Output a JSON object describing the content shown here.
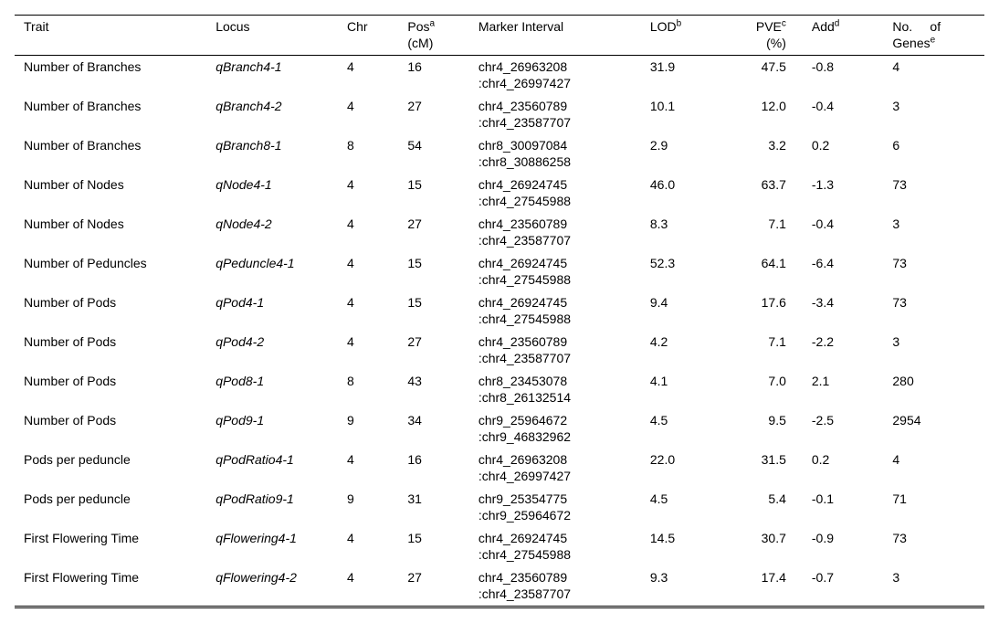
{
  "table": {
    "headers": {
      "trait": "Trait",
      "locus": "Locus",
      "chr": "Chr",
      "pos_label": "Pos",
      "pos_sup": "a",
      "pos_unit": "(cM)",
      "marker_interval": "Marker Interval",
      "lod_label": "LOD",
      "lod_sup": "b",
      "pve_label": "PVE",
      "pve_sup": "c",
      "pve_unit": "(%)",
      "add_label": "Add",
      "add_sup": "d",
      "genes_label_1": "No.",
      "genes_label_2": "of",
      "genes_label_3": "Genes",
      "genes_sup": "e"
    },
    "rows": [
      {
        "trait": "Number of Branches",
        "locus": "qBranch4-1",
        "chr": "4",
        "pos": "16",
        "marker1": "chr4_26963208",
        "marker2": ":chr4_26997427",
        "lod": "31.9",
        "pve": "47.5",
        "add": "-0.8",
        "genes": "4"
      },
      {
        "trait": "Number of Branches",
        "locus": "qBranch4-2",
        "chr": "4",
        "pos": "27",
        "marker1": "chr4_23560789",
        "marker2": ":chr4_23587707",
        "lod": "10.1",
        "pve": "12.0",
        "add": "-0.4",
        "genes": "3"
      },
      {
        "trait": "Number of Branches",
        "locus": "qBranch8-1",
        "chr": "8",
        "pos": "54",
        "marker1": "chr8_30097084",
        "marker2": ":chr8_30886258",
        "lod": "2.9",
        "pve": "3.2",
        "add": "0.2",
        "genes": "6"
      },
      {
        "trait": "Number of Nodes",
        "locus": "qNode4-1",
        "chr": "4",
        "pos": "15",
        "marker1": "chr4_26924745",
        "marker2": ":chr4_27545988",
        "lod": "46.0",
        "pve": "63.7",
        "add": "-1.3",
        "genes": "73"
      },
      {
        "trait": "Number of Nodes",
        "locus": "qNode4-2",
        "chr": "4",
        "pos": "27",
        "marker1": "chr4_23560789",
        "marker2": ":chr4_23587707",
        "lod": "8.3",
        "pve": "7.1",
        "add": "-0.4",
        "genes": "3"
      },
      {
        "trait": "Number of Peduncles",
        "locus": "qPeduncle4-1",
        "chr": "4",
        "pos": "15",
        "marker1": "chr4_26924745",
        "marker2": ":chr4_27545988",
        "lod": "52.3",
        "pve": "64.1",
        "add": "-6.4",
        "genes": "73"
      },
      {
        "trait": "Number of Pods",
        "locus": "qPod4-1",
        "chr": "4",
        "pos": "15",
        "marker1": "chr4_26924745",
        "marker2": ":chr4_27545988",
        "lod": "9.4",
        "pve": "17.6",
        "add": "-3.4",
        "genes": "73"
      },
      {
        "trait": "Number of Pods",
        "locus": "qPod4-2",
        "chr": "4",
        "pos": "27",
        "marker1": "chr4_23560789",
        "marker2": ":chr4_23587707",
        "lod": "4.2",
        "pve": "7.1",
        "add": "-2.2",
        "genes": "3"
      },
      {
        "trait": "Number of Pods",
        "locus": "qPod8-1",
        "chr": "8",
        "pos": "43",
        "marker1": "chr8_23453078",
        "marker2": ":chr8_26132514",
        "lod": "4.1",
        "pve": "7.0",
        "add": "2.1",
        "genes": "280"
      },
      {
        "trait": "Number of Pods",
        "locus": "qPod9-1",
        "chr": "9",
        "pos": "34",
        "marker1": "chr9_25964672",
        "marker2": ":chr9_46832962",
        "lod": "4.5",
        "pve": "9.5",
        "add": "-2.5",
        "genes": "2954"
      },
      {
        "trait": "Pods per peduncle",
        "locus": "qPodRatio4-1",
        "chr": "4",
        "pos": "16",
        "marker1": "chr4_26963208",
        "marker2": ":chr4_26997427",
        "lod": "22.0",
        "pve": "31.5",
        "add": "0.2",
        "genes": "4"
      },
      {
        "trait": "Pods per peduncle",
        "locus": "qPodRatio9-1",
        "chr": "9",
        "pos": "31",
        "marker1": "chr9_25354775",
        "marker2": ":chr9_25964672",
        "lod": "4.5",
        "pve": "5.4",
        "add": "-0.1",
        "genes": "71"
      },
      {
        "trait": "First Flowering Time",
        "locus": "qFlowering4-1",
        "chr": "4",
        "pos": "15",
        "marker1": "chr4_26924745",
        "marker2": ":chr4_27545988",
        "lod": "14.5",
        "pve": "30.7",
        "add": "-0.9",
        "genes": "73"
      },
      {
        "trait": "First Flowering Time",
        "locus": "qFlowering4-2",
        "chr": "4",
        "pos": "27",
        "marker1": "chr4_23560789",
        "marker2": ":chr4_23587707",
        "lod": "9.3",
        "pve": "17.4",
        "add": "-0.7",
        "genes": "3"
      }
    ]
  }
}
